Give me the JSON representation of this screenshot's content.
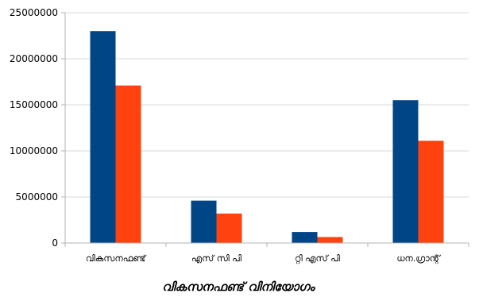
{
  "chart_data": {
    "type": "bar",
    "categories": [
      "വികസനഫണ്ട്",
      "എസ് സി പി",
      "റ്റി എസ് പി",
      "ധന.ഗ്രാന്റ്"
    ],
    "series": [
      {
        "values": [
          23000000,
          4600000,
          1200000,
          15500000
        ],
        "color": "#004586"
      },
      {
        "values": [
          17100000,
          3200000,
          650000,
          11100000
        ],
        "color": "#ff420e"
      }
    ],
    "xlabel": "വികസനഫണ്ട് വിനിയോഗം",
    "ylabel": "",
    "ylim": [
      0,
      25000000
    ],
    "yticks": [
      0,
      5000000,
      10000000,
      15000000,
      20000000,
      25000000
    ],
    "ytick_labels": [
      "0",
      "5000000",
      "10000000",
      "15000000",
      "20000000",
      "25000000"
    ],
    "grid": true,
    "colors": {
      "grid": "#d9d9d9",
      "axis": "#b3b3b3"
    }
  }
}
